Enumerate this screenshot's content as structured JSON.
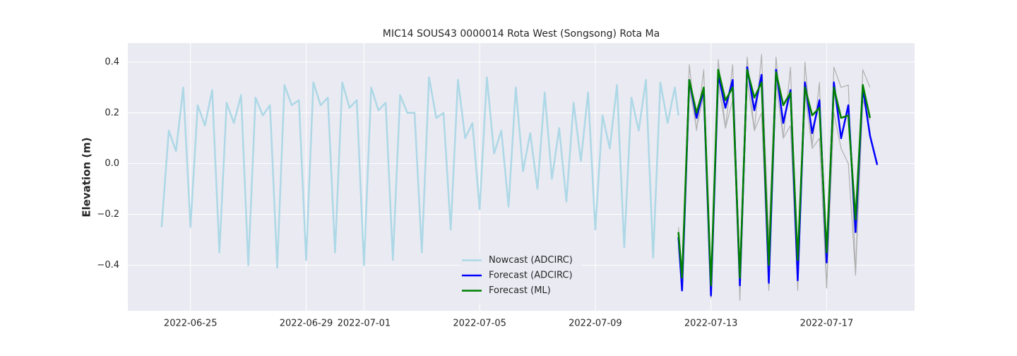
{
  "chart_data": {
    "type": "line",
    "title": "MIC14 SOUS43 0000014 Rota West (Songsong) Rota Ma",
    "y_label": "Elevation (m)",
    "xlim": [
      "2022-06-22 20:00",
      "2022-07-20 01:00"
    ],
    "xticks": [
      "2022-06-25",
      "2022-06-29",
      "2022-07-01",
      "2022-07-05",
      "2022-07-09",
      "2022-07-13",
      "2022-07-17"
    ],
    "ylim": [
      -0.58,
      0.475
    ],
    "yticks": [
      {
        "value": -0.4,
        "label": "−0.4"
      },
      {
        "value": -0.2,
        "label": "−0.2"
      },
      {
        "value": 0,
        "label": "0.0"
      },
      0.2,
      0.4
    ],
    "grid": true,
    "legend": "lower center",
    "series": [
      {
        "color": "#b0b0b0",
        "x": [
          "2022-07-11 21:00",
          "2022-07-12 00:00",
          "2022-07-12 06:00",
          "2022-07-12 12:00",
          "2022-07-12 18:00",
          "2022-07-13 00:00",
          "2022-07-13 06:00",
          "2022-07-13 12:00",
          "2022-07-13 18:00",
          "2022-07-14 00:00",
          "2022-07-14 06:00",
          "2022-07-14 12:00",
          "2022-07-14 18:00",
          "2022-07-15 00:00",
          "2022-07-15 06:00",
          "2022-07-15 12:00",
          "2022-07-15 18:00",
          "2022-07-16 00:00",
          "2022-07-16 06:00",
          "2022-07-16 12:00",
          "2022-07-16 18:00",
          "2022-07-17 00:00",
          "2022-07-17 06:00",
          "2022-07-17 12:00",
          "2022-07-17 18:00",
          "2022-07-18 00:00",
          "2022-07-18 06:00",
          "2022-07-18 12:00"
        ],
        "values": [
          -0.25,
          -0.45,
          0.39,
          0.13,
          0.37,
          -0.5,
          0.41,
          0.14,
          0.39,
          -0.42,
          0.42,
          0.13,
          0.43,
          -0.3,
          0.42,
          0.1,
          0.38,
          -0.45,
          0.4,
          0.07,
          0.32,
          -0.49,
          0.38,
          0.3,
          0.31,
          -0.43,
          0.37,
          0.3
        ]
      },
      {
        "color": "#b0b0b0",
        "x": [
          "2022-07-11 21:00",
          "2022-07-12 00:00",
          "2022-07-12 06:00",
          "2022-07-12 12:00",
          "2022-07-12 18:00",
          "2022-07-13 00:00",
          "2022-07-13 06:00",
          "2022-07-13 12:00",
          "2022-07-13 18:00",
          "2022-07-14 00:00",
          "2022-07-14 06:00",
          "2022-07-14 12:00",
          "2022-07-14 18:00",
          "2022-07-15 00:00",
          "2022-07-15 06:00",
          "2022-07-15 12:00",
          "2022-07-15 18:00",
          "2022-07-16 00:00",
          "2022-07-16 06:00",
          "2022-07-16 12:00",
          "2022-07-16 18:00",
          "2022-07-17 00:00",
          "2022-07-17 06:00",
          "2022-07-17 12:00",
          "2022-07-17 18:00",
          "2022-07-18 00:00",
          "2022-07-18 06:00",
          "2022-07-18 12:00"
        ],
        "values": [
          -0.33,
          -0.5,
          0.3,
          0.14,
          0.27,
          -0.53,
          0.32,
          0.14,
          0.25,
          -0.54,
          0.33,
          0.13,
          0.2,
          -0.5,
          0.32,
          0.1,
          0.15,
          -0.5,
          0.28,
          0.06,
          0.1,
          -0.49,
          0.2,
          0.06,
          0.0,
          -0.44,
          0.25,
          0.17
        ]
      },
      {
        "name": "Nowcast (ADCIRC)",
        "color": "#add8e6",
        "x": [
          "2022-06-24 00:00",
          "2022-06-24 06:00",
          "2022-06-24 12:00",
          "2022-06-24 18:00",
          "2022-06-25 00:00",
          "2022-06-25 06:00",
          "2022-06-25 12:00",
          "2022-06-25 18:00",
          "2022-06-26 00:00",
          "2022-06-26 06:00",
          "2022-06-26 12:00",
          "2022-06-26 18:00",
          "2022-06-27 00:00",
          "2022-06-27 06:00",
          "2022-06-27 12:00",
          "2022-06-27 18:00",
          "2022-06-28 00:00",
          "2022-06-28 06:00",
          "2022-06-28 12:00",
          "2022-06-28 18:00",
          "2022-06-29 00:00",
          "2022-06-29 06:00",
          "2022-06-29 12:00",
          "2022-06-29 18:00",
          "2022-06-30 00:00",
          "2022-06-30 06:00",
          "2022-06-30 12:00",
          "2022-06-30 18:00",
          "2022-07-01 00:00",
          "2022-07-01 06:00",
          "2022-07-01 12:00",
          "2022-07-01 18:00",
          "2022-07-02 00:00",
          "2022-07-02 06:00",
          "2022-07-02 12:00",
          "2022-07-02 18:00",
          "2022-07-03 00:00",
          "2022-07-03 06:00",
          "2022-07-03 12:00",
          "2022-07-03 18:00",
          "2022-07-04 00:00",
          "2022-07-04 06:00",
          "2022-07-04 12:00",
          "2022-07-04 18:00",
          "2022-07-05 00:00",
          "2022-07-05 06:00",
          "2022-07-05 12:00",
          "2022-07-05 18:00",
          "2022-07-06 00:00",
          "2022-07-06 06:00",
          "2022-07-06 12:00",
          "2022-07-06 18:00",
          "2022-07-07 00:00",
          "2022-07-07 06:00",
          "2022-07-07 12:00",
          "2022-07-07 18:00",
          "2022-07-08 00:00",
          "2022-07-08 06:00",
          "2022-07-08 12:00",
          "2022-07-08 18:00",
          "2022-07-09 00:00",
          "2022-07-09 06:00",
          "2022-07-09 12:00",
          "2022-07-09 18:00",
          "2022-07-10 00:00",
          "2022-07-10 06:00",
          "2022-07-10 12:00",
          "2022-07-10 18:00",
          "2022-07-11 00:00",
          "2022-07-11 06:00",
          "2022-07-11 12:00",
          "2022-07-11 18:00",
          "2022-07-11 21:00"
        ],
        "values": [
          -0.25,
          0.13,
          0.05,
          0.3,
          -0.25,
          0.23,
          0.15,
          0.29,
          -0.35,
          0.24,
          0.16,
          0.27,
          -0.4,
          0.26,
          0.19,
          0.23,
          -0.41,
          0.31,
          0.23,
          0.25,
          -0.38,
          0.32,
          0.23,
          0.26,
          -0.35,
          0.32,
          0.22,
          0.25,
          -0.4,
          0.3,
          0.21,
          0.24,
          -0.38,
          0.27,
          0.2,
          0.2,
          -0.35,
          0.34,
          0.18,
          0.2,
          -0.26,
          0.33,
          0.1,
          0.16,
          -0.18,
          0.34,
          0.04,
          0.13,
          -0.17,
          0.3,
          -0.03,
          0.12,
          -0.1,
          0.28,
          -0.06,
          0.14,
          -0.15,
          0.24,
          0.01,
          0.28,
          -0.26,
          0.19,
          0.06,
          0.31,
          -0.33,
          0.26,
          0.13,
          0.33,
          -0.37,
          0.32,
          0.16,
          0.3,
          0.19
        ]
      },
      {
        "name": "Forecast (ADCIRC)",
        "color": "#0000ff",
        "x": [
          "2022-07-11 21:00",
          "2022-07-12 00:00",
          "2022-07-12 06:00",
          "2022-07-12 12:00",
          "2022-07-12 18:00",
          "2022-07-13 00:00",
          "2022-07-13 06:00",
          "2022-07-13 12:00",
          "2022-07-13 18:00",
          "2022-07-14 00:00",
          "2022-07-14 06:00",
          "2022-07-14 12:00",
          "2022-07-14 18:00",
          "2022-07-15 00:00",
          "2022-07-15 06:00",
          "2022-07-15 12:00",
          "2022-07-15 18:00",
          "2022-07-16 00:00",
          "2022-07-16 06:00",
          "2022-07-16 12:00",
          "2022-07-16 18:00",
          "2022-07-17 00:00",
          "2022-07-17 06:00",
          "2022-07-17 12:00",
          "2022-07-17 18:00",
          "2022-07-18 00:00",
          "2022-07-18 06:00",
          "2022-07-18 12:00",
          "2022-07-18 18:00"
        ],
        "values": [
          -0.29,
          -0.5,
          0.33,
          0.18,
          0.29,
          -0.52,
          0.35,
          0.22,
          0.33,
          -0.48,
          0.38,
          0.21,
          0.35,
          -0.47,
          0.37,
          0.16,
          0.29,
          -0.46,
          0.32,
          0.12,
          0.25,
          -0.39,
          0.32,
          0.1,
          0.23,
          -0.27,
          0.3,
          0.11,
          -0.005
        ]
      },
      {
        "name": "Forecast (ML)",
        "color": "#008000",
        "x": [
          "2022-07-11 21:00",
          "2022-07-12 00:00",
          "2022-07-12 06:00",
          "2022-07-12 12:00",
          "2022-07-12 18:00",
          "2022-07-13 00:00",
          "2022-07-13 06:00",
          "2022-07-13 12:00",
          "2022-07-13 18:00",
          "2022-07-14 00:00",
          "2022-07-14 06:00",
          "2022-07-14 12:00",
          "2022-07-14 18:00",
          "2022-07-15 00:00",
          "2022-07-15 06:00",
          "2022-07-15 12:00",
          "2022-07-15 18:00",
          "2022-07-16 00:00",
          "2022-07-16 06:00",
          "2022-07-16 12:00",
          "2022-07-16 18:00",
          "2022-07-17 00:00",
          "2022-07-17 06:00",
          "2022-07-17 12:00",
          "2022-07-17 18:00",
          "2022-07-18 00:00",
          "2022-07-18 06:00",
          "2022-07-18 12:00"
        ],
        "values": [
          -0.27,
          -0.45,
          0.33,
          0.2,
          0.3,
          -0.48,
          0.37,
          0.25,
          0.3,
          -0.45,
          0.37,
          0.26,
          0.32,
          -0.4,
          0.36,
          0.23,
          0.28,
          -0.38,
          0.3,
          0.19,
          0.22,
          -0.35,
          0.3,
          0.18,
          0.19,
          -0.22,
          0.31,
          0.18
        ]
      }
    ]
  }
}
